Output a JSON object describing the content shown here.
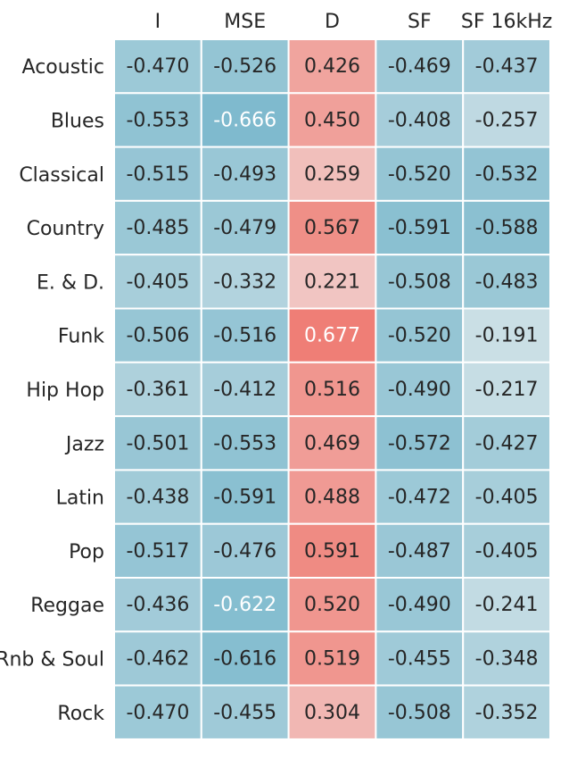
{
  "chart_data": {
    "type": "heatmap",
    "columns": [
      "I",
      "MSE",
      "D",
      "SF",
      "SF 16kHz"
    ],
    "rows": [
      "Acoustic",
      "Blues",
      "Classical",
      "Country",
      "E. & D.",
      "Funk",
      "Hip Hop",
      "Jazz",
      "Latin",
      "Pop",
      "Reggae",
      "Rnb & Soul",
      "Rock"
    ],
    "values": [
      [
        -0.47,
        -0.526,
        0.426,
        -0.469,
        -0.437
      ],
      [
        -0.553,
        -0.666,
        0.45,
        -0.408,
        -0.257
      ],
      [
        -0.515,
        -0.493,
        0.259,
        -0.52,
        -0.532
      ],
      [
        -0.485,
        -0.479,
        0.567,
        -0.591,
        -0.588
      ],
      [
        -0.405,
        -0.332,
        0.221,
        -0.508,
        -0.483
      ],
      [
        -0.506,
        -0.516,
        0.677,
        -0.52,
        -0.191
      ],
      [
        -0.361,
        -0.412,
        0.516,
        -0.49,
        -0.217
      ],
      [
        -0.501,
        -0.553,
        0.469,
        -0.572,
        -0.427
      ],
      [
        -0.438,
        -0.591,
        0.488,
        -0.472,
        -0.405
      ],
      [
        -0.517,
        -0.476,
        0.591,
        -0.487,
        -0.405
      ],
      [
        -0.436,
        -0.622,
        0.52,
        -0.49,
        -0.241
      ],
      [
        -0.462,
        -0.616,
        0.519,
        -0.455,
        -0.348
      ],
      [
        -0.47,
        -0.455,
        0.304,
        -0.508,
        -0.352
      ]
    ],
    "labels": [
      [
        "-0.470",
        "-0.526",
        "0.426",
        "-0.469",
        "-0.437"
      ],
      [
        "-0.553",
        "-0.666",
        "0.450",
        "-0.408",
        "-0.257"
      ],
      [
        "-0.515",
        "-0.493",
        "0.259",
        "-0.520",
        "-0.532"
      ],
      [
        "-0.485",
        "-0.479",
        "0.567",
        "-0.591",
        "-0.588"
      ],
      [
        "-0.405",
        "-0.332",
        "0.221",
        "-0.508",
        "-0.483"
      ],
      [
        "-0.506",
        "-0.516",
        "0.677",
        "-0.520",
        "-0.191"
      ],
      [
        "-0.361",
        "-0.412",
        "0.516",
        "-0.490",
        "-0.217"
      ],
      [
        "-0.501",
        "-0.553",
        "0.469",
        "-0.572",
        "-0.427"
      ],
      [
        "-0.438",
        "-0.591",
        "0.488",
        "-0.472",
        "-0.405"
      ],
      [
        "-0.517",
        "-0.476",
        "0.591",
        "-0.487",
        "-0.405"
      ],
      [
        "-0.436",
        "-0.622",
        "0.520",
        "-0.490",
        "-0.241"
      ],
      [
        "-0.462",
        "-0.616",
        "0.519",
        "-0.455",
        "-0.348"
      ],
      [
        "-0.470",
        "-0.455",
        "0.304",
        "-0.508",
        "-0.352"
      ]
    ],
    "colormap": {
      "type": "diverging",
      "negative_color": "#7ab8cc",
      "neutral_color": "#f2f2f2",
      "positive_color": "#ef7b72",
      "vmin": -0.7,
      "vmax": 0.7
    },
    "dark_text_color": "#262626",
    "light_text_color": "#ffffff",
    "grid_color": "#ffffff"
  }
}
